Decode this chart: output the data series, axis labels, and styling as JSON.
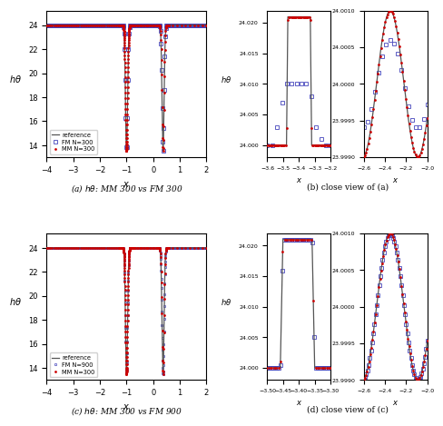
{
  "fig_width": 4.74,
  "fig_height": 4.62,
  "ref_color": "#555555",
  "fm_color": "#4444bb",
  "mm_color": "#cc0000",
  "panel_a": {
    "xlim": [
      -4,
      2
    ],
    "ylim": [
      13,
      25.2
    ],
    "xticks": [
      -4,
      -3,
      -2,
      -1,
      0,
      1,
      2
    ],
    "yticks": [
      14,
      16,
      18,
      20,
      22,
      24
    ],
    "legend": [
      "reference",
      "FM N=300",
      "MM N=300"
    ]
  },
  "panel_b_left": {
    "xlim": [
      -3.6,
      -3.2
    ],
    "ylim": [
      23.998,
      24.022
    ],
    "xticks": [
      -3.6,
      -3.5,
      -3.4,
      -3.3,
      -3.2
    ],
    "yticks": [
      24.0,
      24.005,
      24.01,
      24.015,
      24.02
    ]
  },
  "panel_b_right": {
    "xlim": [
      -2.6,
      -2.0
    ],
    "ylim": [
      23.999,
      24.001
    ],
    "xticks": [
      -2.6,
      -2.4,
      -2.2,
      -2.0
    ],
    "yticks": [
      23.999,
      23.9995,
      24.0,
      24.0005,
      24.001
    ]
  },
  "panel_c": {
    "xlim": [
      -4,
      2
    ],
    "ylim": [
      13,
      25.2
    ],
    "xticks": [
      -4,
      -3,
      -2,
      -1,
      0,
      1,
      2
    ],
    "yticks": [
      14,
      16,
      18,
      20,
      22,
      24
    ],
    "legend": [
      "reference",
      "FM N=900",
      "MM N=300"
    ]
  },
  "panel_d_left": {
    "xlim": [
      -3.5,
      -3.3
    ],
    "ylim": [
      23.998,
      24.022
    ],
    "xticks": [
      -3.5,
      -3.45,
      -3.4,
      -3.35,
      -3.3
    ],
    "yticks": [
      24.0,
      24.005,
      24.01,
      24.015,
      24.02
    ]
  },
  "panel_d_right": {
    "xlim": [
      -2.6,
      -2.0
    ],
    "ylim": [
      23.999,
      24.001
    ],
    "xticks": [
      -2.6,
      -2.4,
      -2.2,
      -2.0
    ],
    "yticks": [
      23.999,
      23.9995,
      24.0,
      24.0005,
      24.001
    ]
  },
  "captions": {
    "a": "(a) $h\\theta$: MM 300 vs FM 300",
    "b": "(b) close view of (a)",
    "c": "(c) $h\\theta$: MM 300 vs FM 900",
    "d": "(d) close view of (c)"
  }
}
